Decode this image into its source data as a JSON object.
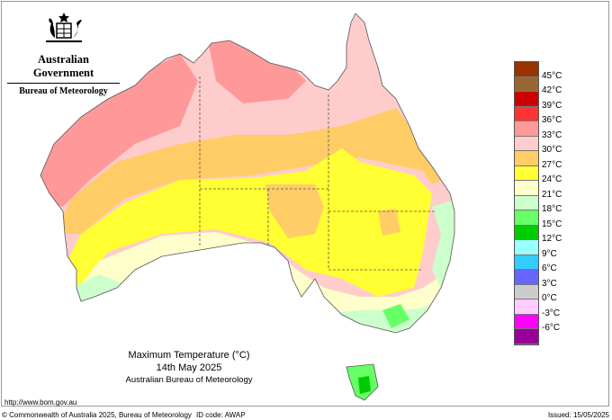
{
  "logo": {
    "line1": "Australian Government",
    "line2": "Bureau of Meteorology",
    "icon": "coat-of-arms-icon"
  },
  "title": {
    "main": "Maximum Temperature (°C)",
    "date": "14th May 2025",
    "source": "Australian Bureau of Meteorology"
  },
  "legend": {
    "colors": [
      "#993300",
      "#996633",
      "#cc0000",
      "#ff3333",
      "#ff9999",
      "#ffcccc",
      "#ffcc66",
      "#ffff33",
      "#ffffcc",
      "#ccffcc",
      "#66ff66",
      "#00cc00",
      "#99ffff",
      "#33ccff",
      "#6666ff",
      "#cccccc",
      "#ffccff",
      "#ff00ff",
      "#990099"
    ],
    "labels": [
      "45°C",
      "42°C",
      "39°C",
      "36°C",
      "33°C",
      "30°C",
      "27°C",
      "24°C",
      "21°C",
      "18°C",
      "15°C",
      "12°C",
      "9°C",
      "6°C",
      "3°C",
      "0°C",
      "-3°C",
      "-6°C"
    ]
  },
  "footer": {
    "url": "http://www.bom.gov.au",
    "copyright": "© Commonwealth of Australia 2025, Bureau of Meteorology",
    "id_code": "ID code: AWAP",
    "issued": "Issued: 15/05/2025"
  }
}
